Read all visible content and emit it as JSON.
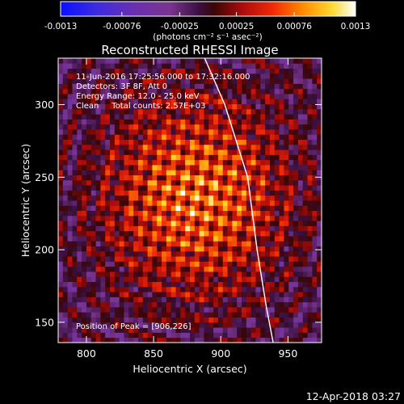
{
  "chart_data": {
    "type": "heatmap",
    "title": "Reconstructed RHESSI Image",
    "colorbar": {
      "ticks": [
        "-0.0013",
        "-0.00076",
        "-0.00025",
        "0.00025",
        "0.00076",
        "0.0013"
      ],
      "range": [
        -0.0013,
        0.0013
      ],
      "units": "(photons cm⁻² s⁻¹ asec⁻²)",
      "colormap": "blue-purple-red-orange-yellow-white"
    },
    "info_lines": [
      "11-Jun-2016 17:25:56.000 to 17:32:16.000",
      "Detectors: 3F 8F, Att 0",
      "Energy Range: 12.0 - 25.0 keV",
      "Clean     Total counts: 2.57E+03"
    ],
    "peak_label": "Position of Peak = [906,226]",
    "peak": [
      906,
      226
    ],
    "xlabel": "Heliocentric X (arcsec)",
    "ylabel": "Heliocentric Y (arcsec)",
    "xlim": [
      779,
      975
    ],
    "ylim": [
      136,
      332
    ],
    "xticks": [
      800,
      850,
      900,
      950
    ],
    "yticks": [
      150,
      200,
      250,
      300
    ],
    "limb": [
      [
        888,
        332
      ],
      [
        903,
        300
      ],
      [
        920,
        250
      ],
      [
        927,
        200
      ],
      [
        934,
        160
      ],
      [
        939,
        136
      ]
    ],
    "source_center": [
      880,
      235
    ],
    "grid": false
  },
  "footer_timestamp": "12-Apr-2018 03:27"
}
